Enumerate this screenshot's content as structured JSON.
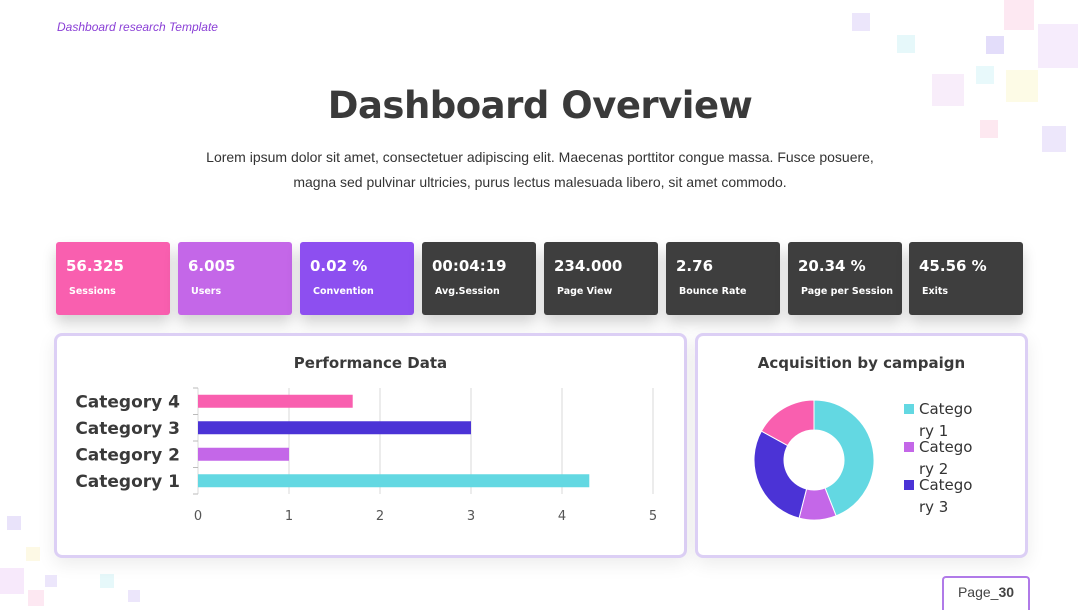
{
  "header": {
    "template_label": "Dashboard research Template",
    "title": "Dashboard Overview",
    "subtitle_line1": "Lorem ipsum dolor sit amet, consectetuer adipiscing elit. Maecenas porttitor congue massa. Fusce posuere,",
    "subtitle_line2": "magna sed pulvinar ultricies, purus lectus malesuada libero, sit amet commodo."
  },
  "kpis": [
    {
      "value": "56.325",
      "label": "Sessions",
      "color": "#f95faf"
    },
    {
      "value": "6.005",
      "label": "Users",
      "color": "#c467e8"
    },
    {
      "value": "0.02 %",
      "label": "Convention",
      "color": "#8d4ff0"
    },
    {
      "value": "00:04:19",
      "label": "Avg.Session",
      "color": "#3e3e3e"
    },
    {
      "value": "234.000",
      "label": "Page View",
      "color": "#3e3e3e"
    },
    {
      "value": "2.76",
      "label": "Bounce Rate",
      "color": "#3e3e3e"
    },
    {
      "value": "20.34 %",
      "label": "Page per Session",
      "color": "#3e3e3e"
    },
    {
      "value": "45.56 %",
      "label": "Exits",
      "color": "#3e3e3e"
    }
  ],
  "performance": {
    "title": "Performance Data"
  },
  "acquisition": {
    "title": "Acquisition by campaign"
  },
  "chart_data": [
    {
      "type": "bar",
      "orientation": "horizontal",
      "title": "Performance Data",
      "categories": [
        "Category 1",
        "Category 2",
        "Category 3",
        "Category 4"
      ],
      "values": [
        4.3,
        1.0,
        3.0,
        1.7
      ],
      "colors": [
        "#63d8e2",
        "#c467e8",
        "#4b33d6",
        "#f95faf"
      ],
      "xlim": [
        0,
        5
      ],
      "ticks": [
        "0",
        "1",
        "2",
        "3",
        "4",
        "5"
      ],
      "grid": true
    },
    {
      "type": "pie",
      "donut": true,
      "title": "Acquisition by campaign",
      "slices": [
        {
          "name": "Category 1",
          "value": 44,
          "color": "#63d8e2"
        },
        {
          "name": "Category 2",
          "value": 10,
          "color": "#c467e8"
        },
        {
          "name": "Category 3",
          "value": 29,
          "color": "#4b33d6"
        },
        {
          "name": "",
          "value": 17,
          "color": "#f95faf"
        }
      ],
      "legend": [
        {
          "line1": "Catego",
          "line2": "ry 1",
          "color": "#63d8e2"
        },
        {
          "line1": "Catego",
          "line2": "ry 2",
          "color": "#c467e8"
        },
        {
          "line1": "Catego",
          "line2": "ry 3",
          "color": "#4b33d6"
        }
      ],
      "legend_position": "right"
    }
  ],
  "footer": {
    "page_prefix": "Page_",
    "page_number": "30"
  }
}
